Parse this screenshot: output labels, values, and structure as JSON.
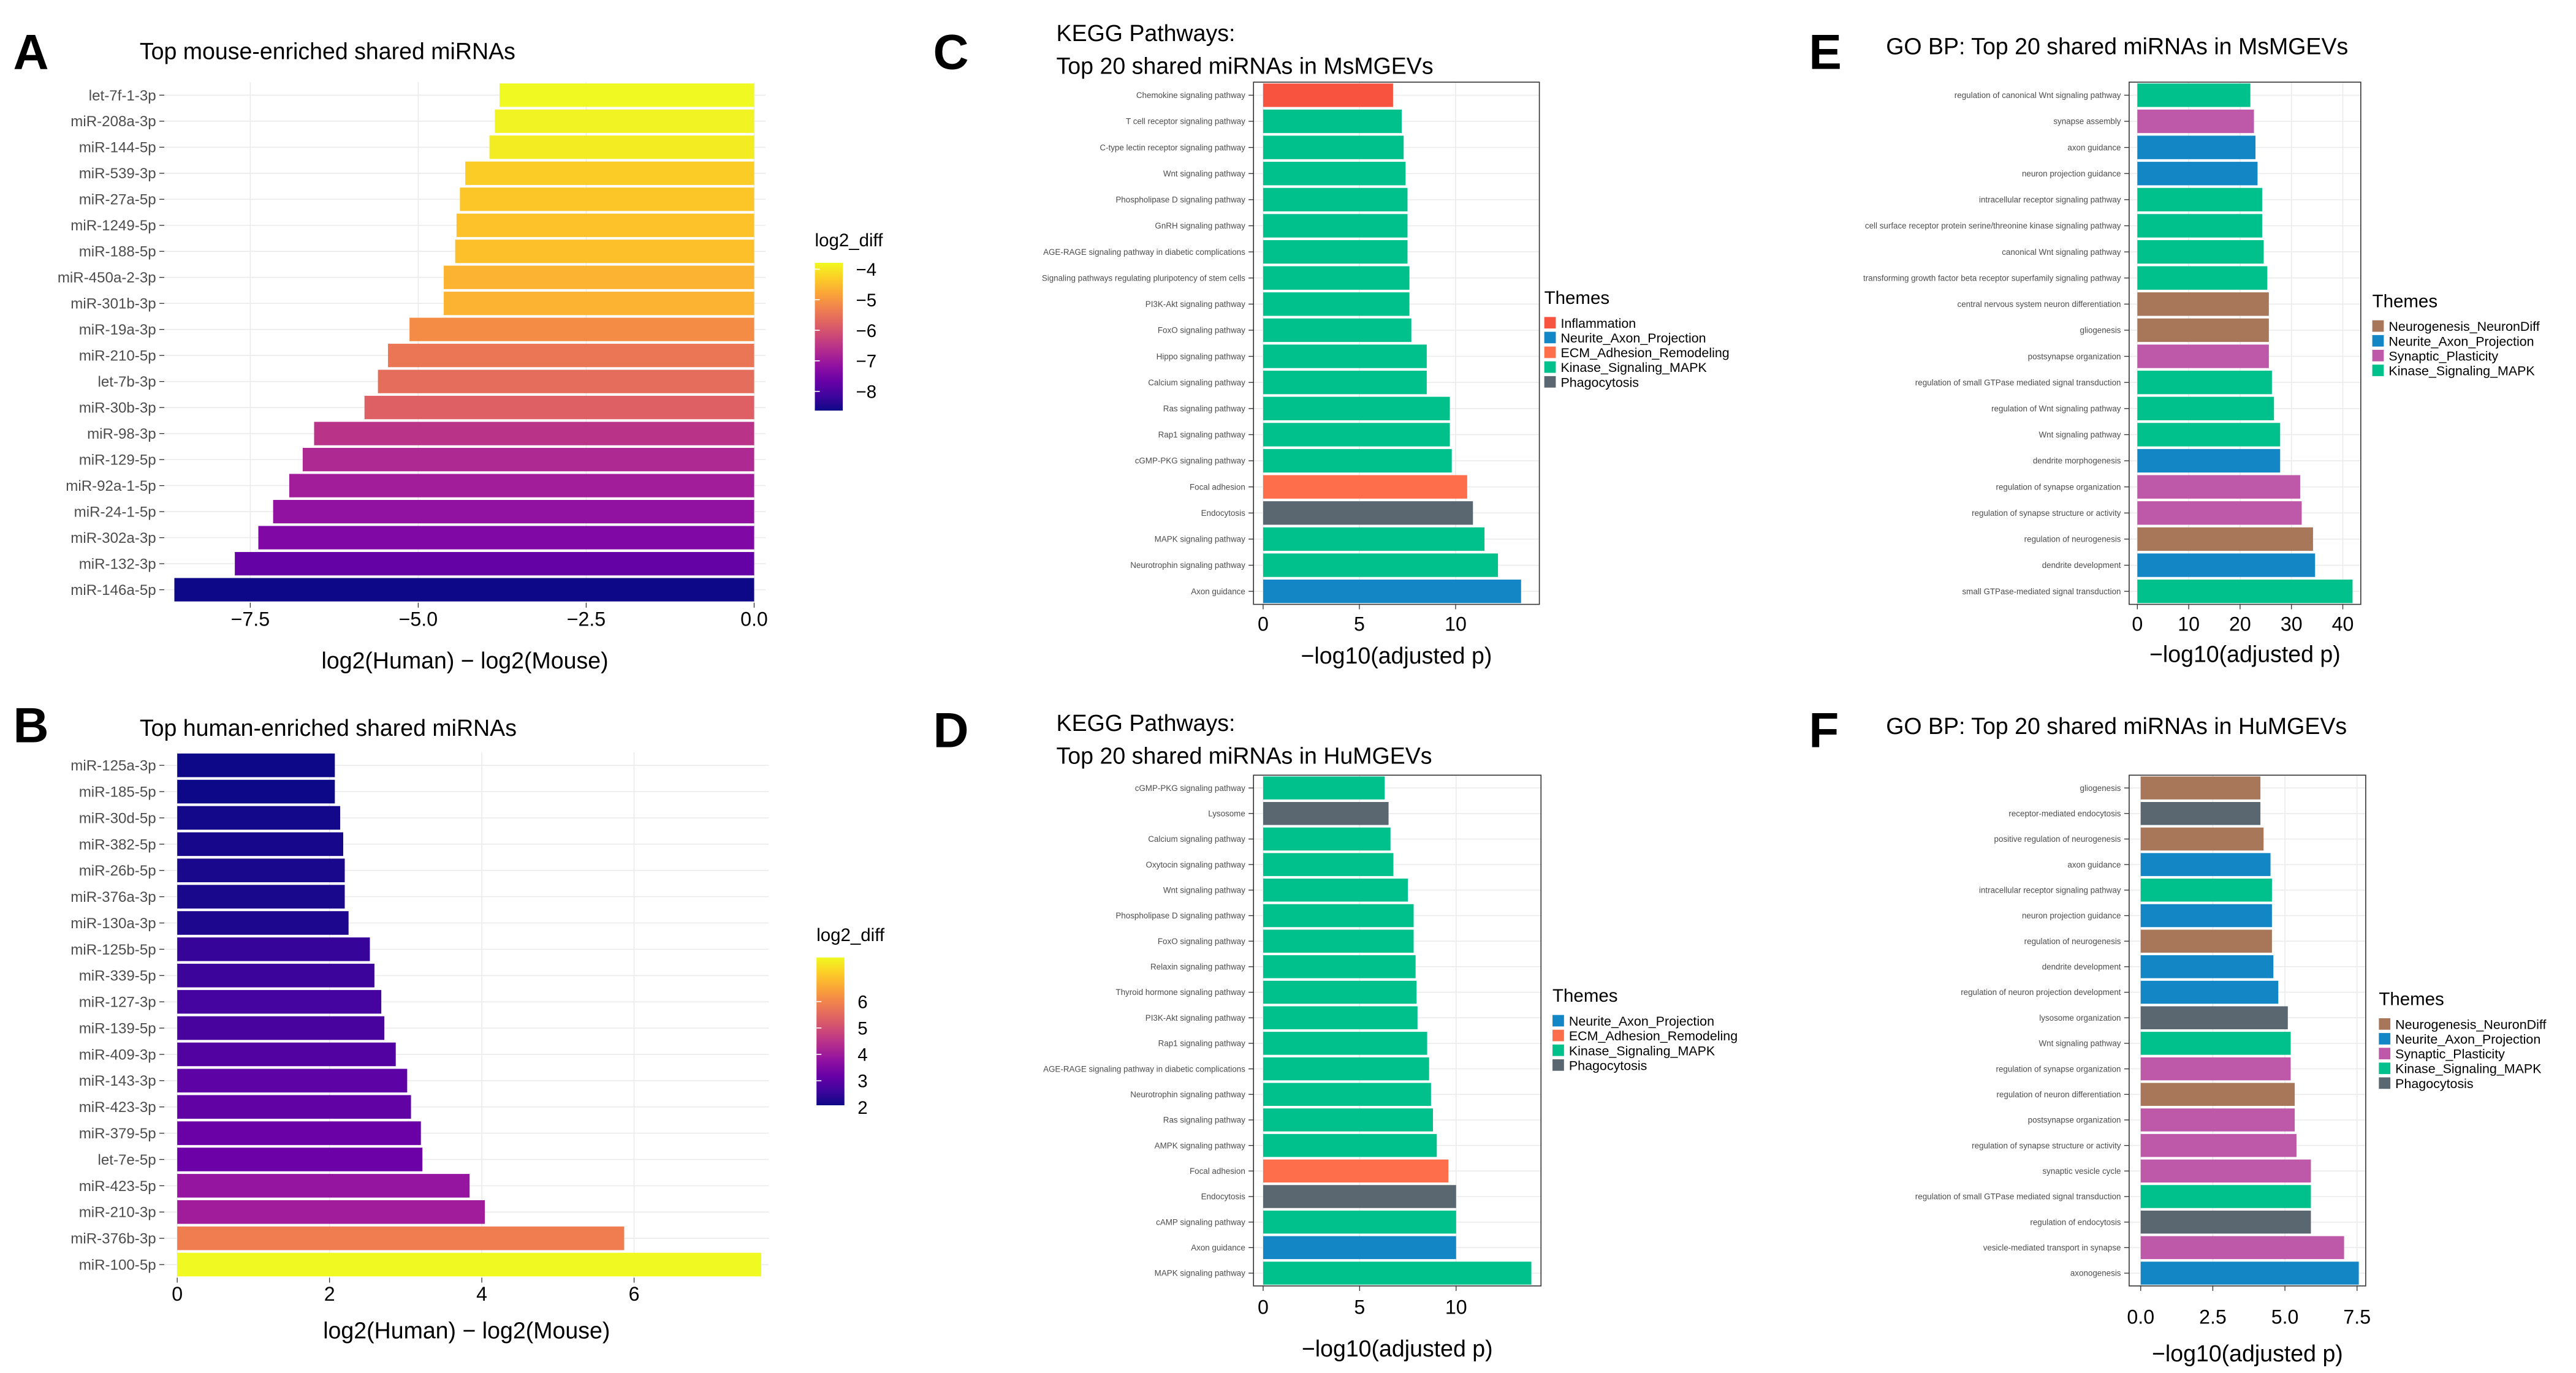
{
  "theme_colors": {
    "Inflammation": "#F8533F",
    "Neurite_Axon_Projection": "#1387C6",
    "ECM_Adhesion_Remodeling": "#FF6E4A",
    "Kinase_Signaling_MAPK": "#00C08B",
    "Phagocytosis": "#5B6770",
    "Neurogenesis_NeuronDiff": "#A8775A",
    "Synaptic_Plasticity": "#BE58A8"
  },
  "chart_data": [
    {
      "panel": "A",
      "type": "bar",
      "orientation": "horizontal",
      "title": "Top mouse-enriched shared miRNAs",
      "xlabel": "log2(Human) − log2(Mouse)",
      "ylabel": "",
      "xlim": [
        -8.78,
        0.17
      ],
      "xticks": [
        -7.5,
        -5.0,
        -2.5,
        0.0
      ],
      "xtick_labels": [
        "−7.5",
        "−5.0",
        "−2.5",
        "0.0"
      ],
      "grid": true,
      "colormap": "plasma",
      "legend": {
        "title": "log2_diff",
        "placement": "right",
        "ticks": [
          -4,
          -5,
          -6,
          -7,
          -8
        ],
        "tick_labels": [
          "−4",
          "−5",
          "−6",
          "−7",
          "−8"
        ],
        "range": [
          -8.63,
          -3.79
        ]
      },
      "categories": [
        "let-7f-1-3p",
        "miR-208a-3p",
        "miR-144-5p",
        "miR-539-3p",
        "miR-27a-5p",
        "miR-1249-5p",
        "miR-188-5p",
        "miR-450a-2-3p",
        "miR-301b-3p",
        "miR-19a-3p",
        "miR-210-5p",
        "let-7b-3p",
        "miR-30b-3p",
        "miR-98-3p",
        "miR-129-5p",
        "miR-92a-1-5p",
        "miR-24-1-5p",
        "miR-302a-3p",
        "miR-132-3p",
        "miR-146a-5p"
      ],
      "values": [
        -3.79,
        -3.86,
        -3.94,
        -4.3,
        -4.38,
        -4.43,
        -4.45,
        -4.62,
        -4.62,
        -5.13,
        -5.45,
        -5.6,
        -5.8,
        -6.55,
        -6.72,
        -6.92,
        -7.16,
        -7.38,
        -7.73,
        -8.63
      ]
    },
    {
      "panel": "B",
      "type": "bar",
      "orientation": "horizontal",
      "title": "Top human-enriched shared miRNAs",
      "xlabel": "log2(Human) − log2(Mouse)",
      "ylabel": "",
      "xlim": [
        -0.17,
        7.77
      ],
      "xticks": [
        0,
        2,
        4,
        6
      ],
      "xtick_labels": [
        "0",
        "2",
        "4",
        "6"
      ],
      "grid": true,
      "colormap": "plasma",
      "legend": {
        "title": "log2_diff",
        "placement": "right",
        "ticks": [
          6,
          5,
          4,
          3,
          2
        ],
        "tick_labels": [
          "6",
          "5",
          "4",
          "3",
          "2"
        ],
        "range": [
          2.07,
          7.67
        ]
      },
      "categories": [
        "miR-125a-3p",
        "miR-185-5p",
        "miR-30d-5p",
        "miR-382-5p",
        "miR-26b-5p",
        "miR-376a-3p",
        "miR-130a-3p",
        "miR-125b-5p",
        "miR-339-5p",
        "miR-127-3p",
        "miR-139-5p",
        "miR-409-3p",
        "miR-143-3p",
        "miR-423-3p",
        "miR-379-5p",
        "let-7e-5p",
        "miR-423-5p",
        "miR-210-3p",
        "miR-376b-3p",
        "miR-100-5p"
      ],
      "values": [
        2.07,
        2.07,
        2.14,
        2.18,
        2.2,
        2.2,
        2.25,
        2.53,
        2.59,
        2.68,
        2.72,
        2.87,
        3.02,
        3.07,
        3.2,
        3.22,
        3.84,
        4.04,
        5.87,
        7.67
      ]
    },
    {
      "panel": "C",
      "type": "bar",
      "orientation": "horizontal",
      "title": [
        "KEGG Pathways:",
        "Top 20 shared miRNAs in MsMGEVs"
      ],
      "xlabel": "−log10(adjusted p)",
      "ylabel": "",
      "xlim": [
        -0.5,
        14.35
      ],
      "xticks": [
        0,
        5,
        10
      ],
      "xtick_labels": [
        "0",
        "5",
        "10"
      ],
      "grid": true,
      "legend": {
        "title": "Themes",
        "placement": "right",
        "items": [
          "Inflammation",
          "Neurite_Axon_Projection",
          "ECM_Adhesion_Remodeling",
          "Kinase_Signaling_MAPK",
          "Phagocytosis"
        ]
      },
      "categories": [
        "Chemokine signaling pathway",
        "T cell receptor signaling pathway",
        "C-type lectin receptor signaling pathway",
        "Wnt signaling pathway",
        "Phospholipase D signaling pathway",
        "GnRH signaling pathway",
        "AGE-RAGE signaling pathway in diabetic complications",
        "Signaling pathways regulating pluripotency of stem cells",
        "PI3K-Akt signaling pathway",
        "FoxO signaling pathway",
        "Hippo signaling pathway",
        "Calcium signaling pathway",
        "Ras signaling pathway",
        "Rap1 signaling pathway",
        "cGMP-PKG signaling pathway",
        "Focal adhesion",
        "Endocytosis",
        "MAPK signaling pathway",
        "Neurotrophin signaling pathway",
        "Axon guidance"
      ],
      "values": [
        6.75,
        7.2,
        7.3,
        7.4,
        7.5,
        7.5,
        7.5,
        7.6,
        7.6,
        7.7,
        8.5,
        8.5,
        9.7,
        9.7,
        9.8,
        10.6,
        10.9,
        11.5,
        12.2,
        13.4
      ],
      "themes": [
        "Inflammation",
        "Kinase_Signaling_MAPK",
        "Kinase_Signaling_MAPK",
        "Kinase_Signaling_MAPK",
        "Kinase_Signaling_MAPK",
        "Kinase_Signaling_MAPK",
        "Kinase_Signaling_MAPK",
        "Kinase_Signaling_MAPK",
        "Kinase_Signaling_MAPK",
        "Kinase_Signaling_MAPK",
        "Kinase_Signaling_MAPK",
        "Kinase_Signaling_MAPK",
        "Kinase_Signaling_MAPK",
        "Kinase_Signaling_MAPK",
        "Kinase_Signaling_MAPK",
        "ECM_Adhesion_Remodeling",
        "Phagocytosis",
        "Kinase_Signaling_MAPK",
        "Kinase_Signaling_MAPK",
        "Neurite_Axon_Projection"
      ]
    },
    {
      "panel": "D",
      "type": "bar",
      "orientation": "horizontal",
      "title": [
        "KEGG Pathways:",
        "Top 20 shared miRNAs in HuMGEVs"
      ],
      "xlabel": "−log10(adjusted p)",
      "ylabel": "",
      "xlim": [
        -0.5,
        14.4
      ],
      "xticks": [
        0,
        5,
        10
      ],
      "xtick_labels": [
        "0",
        "5",
        "10"
      ],
      "grid": true,
      "legend": {
        "title": "Themes",
        "placement": "right",
        "items": [
          "Neurite_Axon_Projection",
          "ECM_Adhesion_Remodeling",
          "Kinase_Signaling_MAPK",
          "Phagocytosis"
        ]
      },
      "categories": [
        "cGMP-PKG signaling pathway",
        "Lysosome",
        "Calcium signaling pathway",
        "Oxytocin signaling pathway",
        "Wnt signaling pathway",
        "Phospholipase D signaling pathway",
        "FoxO signaling pathway",
        "Relaxin signaling pathway",
        "Thyroid hormone signaling pathway",
        "PI3K-Akt signaling pathway",
        "Rap1 signaling pathway",
        "AGE-RAGE signaling pathway in diabetic complications",
        "Neurotrophin signaling pathway",
        "Ras signaling pathway",
        "AMPK signaling pathway",
        "Focal adhesion",
        "Endocytosis",
        "cAMP signaling pathway",
        "Axon guidance",
        "MAPK signaling pathway"
      ],
      "values": [
        6.3,
        6.5,
        6.6,
        6.75,
        7.5,
        7.8,
        7.8,
        7.9,
        7.95,
        8.0,
        8.5,
        8.6,
        8.7,
        8.8,
        9.0,
        9.6,
        10.0,
        10.0,
        10.0,
        13.9
      ],
      "themes": [
        "Kinase_Signaling_MAPK",
        "Phagocytosis",
        "Kinase_Signaling_MAPK",
        "Kinase_Signaling_MAPK",
        "Kinase_Signaling_MAPK",
        "Kinase_Signaling_MAPK",
        "Kinase_Signaling_MAPK",
        "Kinase_Signaling_MAPK",
        "Kinase_Signaling_MAPK",
        "Kinase_Signaling_MAPK",
        "Kinase_Signaling_MAPK",
        "Kinase_Signaling_MAPK",
        "Kinase_Signaling_MAPK",
        "Kinase_Signaling_MAPK",
        "Kinase_Signaling_MAPK",
        "ECM_Adhesion_Remodeling",
        "Phagocytosis",
        "Kinase_Signaling_MAPK",
        "Neurite_Axon_Projection",
        "Kinase_Signaling_MAPK"
      ]
    },
    {
      "panel": "E",
      "type": "bar",
      "orientation": "horizontal",
      "title": "GO BP: Top 20 shared miRNAs in MsMGEVs",
      "xlabel": "−log10(adjusted p)",
      "ylabel": "",
      "xlim": [
        -1.6,
        43.5
      ],
      "xticks": [
        0,
        10,
        20,
        30,
        40
      ],
      "xtick_labels": [
        "0",
        "10",
        "20",
        "30",
        "40"
      ],
      "grid": true,
      "legend": {
        "title": "Themes",
        "placement": "right",
        "items": [
          "Neurogenesis_NeuronDiff",
          "Neurite_Axon_Projection",
          "Synaptic_Plasticity",
          "Kinase_Signaling_MAPK"
        ]
      },
      "categories": [
        "regulation of canonical Wnt signaling pathway",
        "synapse assembly",
        "axon guidance",
        "neuron projection guidance",
        "intracellular receptor signaling pathway",
        "cell surface receptor protein serine/threonine kinase signaling pathway",
        "canonical Wnt signaling pathway",
        "transforming growth factor beta receptor superfamily signaling pathway",
        "central nervous system neuron differentiation",
        "gliogenesis",
        "postsynapse organization",
        "regulation of small GTPase mediated signal transduction",
        "regulation of Wnt signaling pathway",
        "Wnt signaling pathway",
        "dendrite morphogenesis",
        "regulation of synapse organization",
        "regulation of synapse structure or activity",
        "regulation of neurogenesis",
        "dendrite development",
        "small GTPase-mediated signal transduction"
      ],
      "values": [
        22.0,
        22.7,
        23.0,
        23.4,
        24.3,
        24.3,
        24.6,
        25.3,
        25.6,
        25.6,
        25.6,
        26.2,
        26.6,
        27.8,
        27.8,
        31.7,
        32.0,
        34.2,
        34.6,
        41.9
      ],
      "themes": [
        "Kinase_Signaling_MAPK",
        "Synaptic_Plasticity",
        "Neurite_Axon_Projection",
        "Neurite_Axon_Projection",
        "Kinase_Signaling_MAPK",
        "Kinase_Signaling_MAPK",
        "Kinase_Signaling_MAPK",
        "Kinase_Signaling_MAPK",
        "Neurogenesis_NeuronDiff",
        "Neurogenesis_NeuronDiff",
        "Synaptic_Plasticity",
        "Kinase_Signaling_MAPK",
        "Kinase_Signaling_MAPK",
        "Kinase_Signaling_MAPK",
        "Neurite_Axon_Projection",
        "Synaptic_Plasticity",
        "Synaptic_Plasticity",
        "Neurogenesis_NeuronDiff",
        "Neurite_Axon_Projection",
        "Kinase_Signaling_MAPK"
      ]
    },
    {
      "panel": "F",
      "type": "bar",
      "orientation": "horizontal",
      "title": "GO BP: Top 20 shared miRNAs in HuMGEVs",
      "xlabel": "−log10(adjusted p)",
      "ylabel": "",
      "xlim": [
        -0.4,
        7.8
      ],
      "xticks": [
        0,
        2.5,
        5,
        7.5
      ],
      "xtick_labels": [
        "0.0",
        "2.5",
        "5.0",
        "7.5"
      ],
      "grid": true,
      "legend": {
        "title": "Themes",
        "placement": "right",
        "items": [
          "Neurogenesis_NeuronDiff",
          "Neurite_Axon_Projection",
          "Synaptic_Plasticity",
          "Kinase_Signaling_MAPK",
          "Phagocytosis"
        ]
      },
      "categories": [
        "gliogenesis",
        "receptor-mediated endocytosis",
        "positive regulation of neurogenesis",
        "axon guidance",
        "intracellular receptor signaling pathway",
        "neuron projection guidance",
        "regulation of neurogenesis",
        "dendrite development",
        "regulation of neuron projection development",
        "lysosome organization",
        "Wnt signaling pathway",
        "regulation of synapse organization",
        "regulation of neuron differentiation",
        "postsynapse organization",
        "regulation of synapse structure or activity",
        "synaptic vesicle cycle",
        "regulation of small GTPase mediated signal transduction",
        "regulation of endocytosis",
        "vesicle-mediated transport in synapse",
        "axonogenesis"
      ],
      "values": [
        4.15,
        4.15,
        4.26,
        4.5,
        4.55,
        4.55,
        4.55,
        4.6,
        4.77,
        5.1,
        5.2,
        5.2,
        5.34,
        5.34,
        5.4,
        5.9,
        5.9,
        5.9,
        7.05,
        7.56
      ],
      "themes": [
        "Neurogenesis_NeuronDiff",
        "Phagocytosis",
        "Neurogenesis_NeuronDiff",
        "Neurite_Axon_Projection",
        "Kinase_Signaling_MAPK",
        "Neurite_Axon_Projection",
        "Neurogenesis_NeuronDiff",
        "Neurite_Axon_Projection",
        "Neurite_Axon_Projection",
        "Phagocytosis",
        "Kinase_Signaling_MAPK",
        "Synaptic_Plasticity",
        "Neurogenesis_NeuronDiff",
        "Synaptic_Plasticity",
        "Synaptic_Plasticity",
        "Synaptic_Plasticity",
        "Kinase_Signaling_MAPK",
        "Phagocytosis",
        "Synaptic_Plasticity",
        "Neurite_Axon_Projection"
      ]
    }
  ]
}
